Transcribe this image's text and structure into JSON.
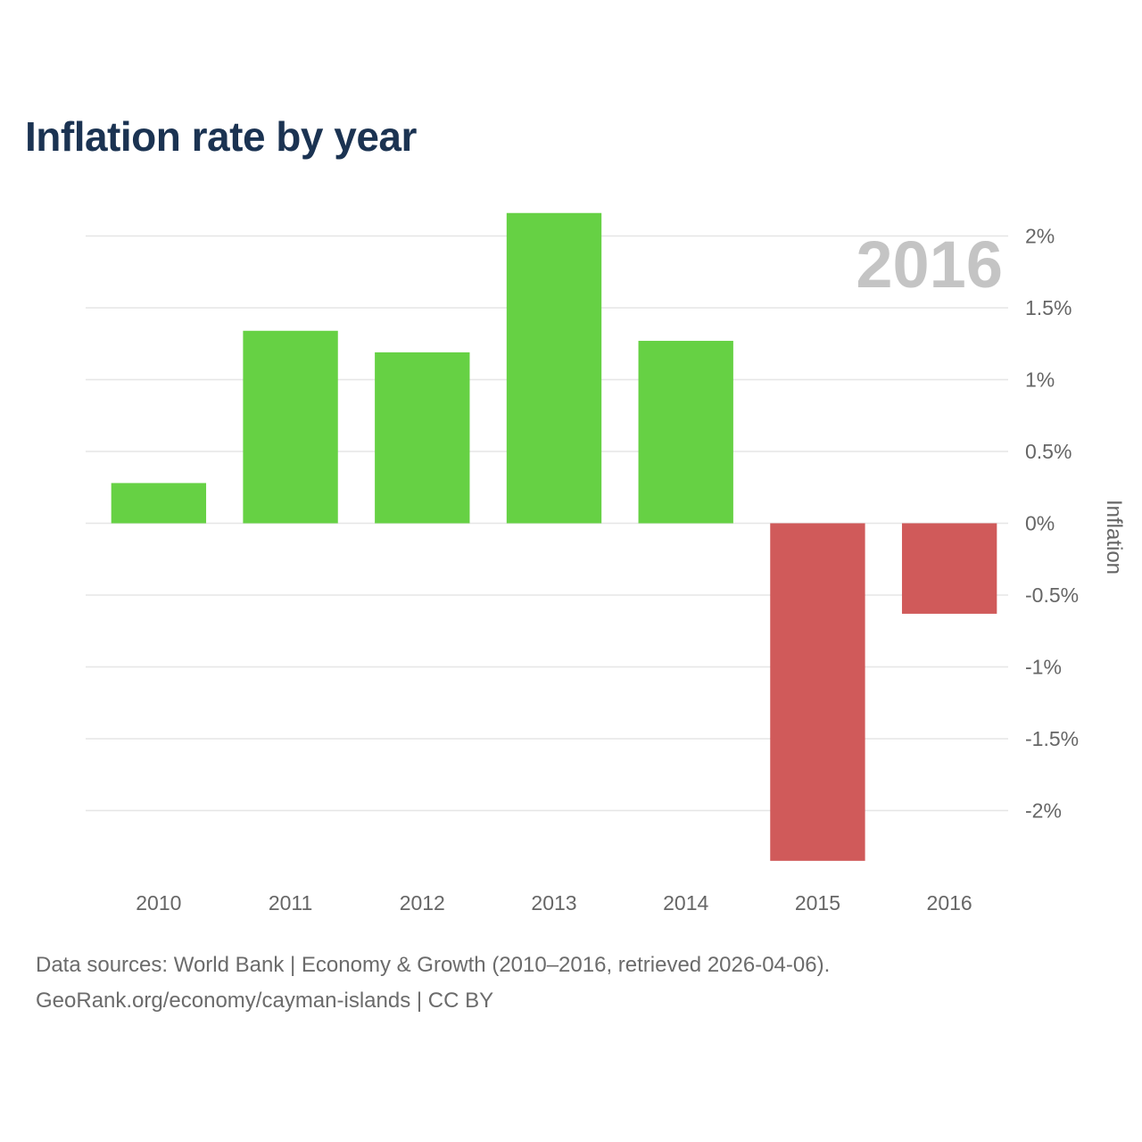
{
  "chart_data": {
    "type": "bar",
    "title": "Inflation rate by year",
    "categories": [
      "2010",
      "2011",
      "2012",
      "2013",
      "2014",
      "2015",
      "2016"
    ],
    "series": [
      {
        "name": "Inflation",
        "values": [
          0.28,
          1.34,
          1.19,
          2.16,
          1.27,
          -2.35,
          -0.63
        ]
      }
    ],
    "ylabel": "Inflation",
    "ylim": [
      -2.4,
      2.25
    ],
    "y_ticks": [
      2,
      1.5,
      1,
      0.5,
      0,
      -0.5,
      -1,
      -1.5,
      -2
    ],
    "y_tick_labels": [
      "2%",
      "1.5%",
      "1%",
      "0.5%",
      "0%",
      "-0.5%",
      "-1%",
      "-1.5%",
      "-2%"
    ],
    "y_axis_side": "right",
    "grid": true,
    "highlight_label": "2016",
    "colors": {
      "positive": "#66d144",
      "negative": "#d05a5a",
      "grid": "#e6e6e6",
      "tick_text": "#666666",
      "highlight_text": "#c4c4c4",
      "title": "#1b3352"
    }
  },
  "footer": {
    "source_line": "Data sources: World Bank | Economy & Growth (2010–2016, retrieved 2026-04-06).",
    "url_line": "GeoRank.org/economy/cayman-islands | CC BY"
  }
}
